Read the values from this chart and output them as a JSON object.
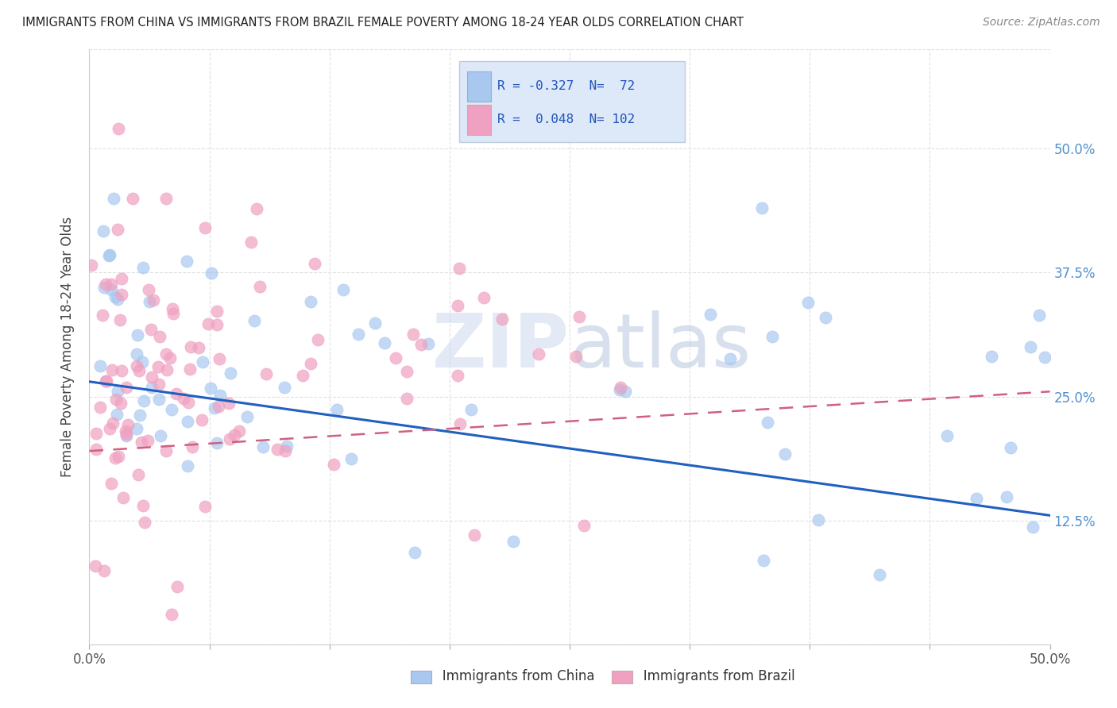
{
  "title": "IMMIGRANTS FROM CHINA VS IMMIGRANTS FROM BRAZIL FEMALE POVERTY AMONG 18-24 YEAR OLDS CORRELATION CHART",
  "source": "Source: ZipAtlas.com",
  "ylabel": "Female Poverty Among 18-24 Year Olds",
  "china_R": -0.327,
  "china_N": 72,
  "brazil_R": 0.048,
  "brazil_N": 102,
  "china_color": "#a8c8f0",
  "brazil_color": "#f0a0c0",
  "china_line_color": "#2060c0",
  "brazil_line_color": "#d06080",
  "background_color": "#ffffff",
  "grid_color": "#e0e0e0",
  "right_tick_color": "#5090d0",
  "xlim": [
    0.0,
    0.5
  ],
  "ylim": [
    0.0,
    0.6
  ],
  "right_yticks": [
    0.125,
    0.25,
    0.375,
    0.5
  ],
  "right_yticklabels": [
    "12.5%",
    "25.0%",
    "37.5%",
    "50.0%"
  ],
  "xtick_positions": [
    0.0,
    0.0625,
    0.125,
    0.1875,
    0.25,
    0.3125,
    0.375,
    0.4375,
    0.5
  ],
  "seed": 99
}
